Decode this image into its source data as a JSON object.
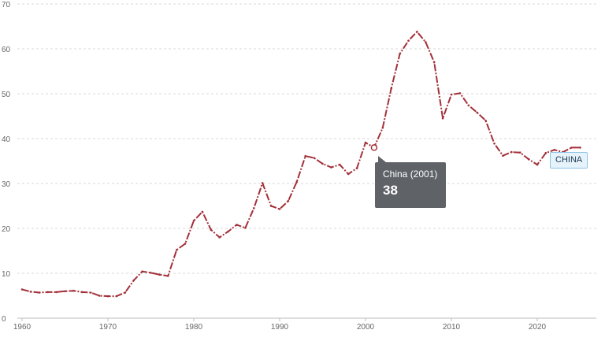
{
  "chart_data": {
    "type": "line",
    "title": "",
    "xlabel": "",
    "ylabel": "",
    "xlim": [
      1960,
      2025
    ],
    "ylim": [
      0,
      70
    ],
    "y_ticks": [
      0,
      10,
      20,
      30,
      40,
      50,
      60,
      70
    ],
    "x_ticks": [
      1960,
      1970,
      1980,
      1990,
      2000,
      2010,
      2020
    ],
    "grid": true,
    "series": [
      {
        "name": "CHINA",
        "color": "#a3303a",
        "x": [
          1960,
          1961,
          1962,
          1963,
          1964,
          1965,
          1966,
          1967,
          1968,
          1969,
          1970,
          1971,
          1972,
          1973,
          1974,
          1975,
          1976,
          1977,
          1978,
          1979,
          1980,
          1981,
          1982,
          1983,
          1984,
          1985,
          1986,
          1987,
          1988,
          1989,
          1990,
          1991,
          1992,
          1993,
          1994,
          1995,
          1996,
          1997,
          1998,
          1999,
          2000,
          2001,
          2002,
          2003,
          2004,
          2005,
          2006,
          2007,
          2008,
          2009,
          2010,
          2011,
          2012,
          2013,
          2014,
          2015,
          2016,
          2017,
          2018,
          2019,
          2020,
          2021,
          2022,
          2023,
          2024,
          2025
        ],
        "values": [
          6.4,
          5.9,
          5.7,
          5.8,
          5.8,
          6.0,
          6.1,
          5.8,
          5.7,
          5.0,
          4.9,
          4.9,
          5.7,
          8.4,
          10.4,
          10.1,
          9.7,
          9.4,
          15.2,
          16.6,
          21.7,
          23.7,
          19.7,
          18.0,
          19.3,
          20.8,
          20.1,
          24.5,
          30.1,
          25.0,
          24.3,
          26.1,
          30.4,
          36.1,
          35.7,
          34.4,
          33.6,
          34.2,
          32.1,
          33.4,
          39.1,
          38.0,
          42.4,
          51.2,
          58.9,
          61.8,
          63.8,
          61.5,
          57.0,
          44.5,
          49.8,
          50.1,
          47.4,
          45.8,
          44.0,
          38.9,
          36.2,
          37.0,
          36.9,
          35.4,
          34.2,
          36.8,
          37.5,
          37.0,
          38.0,
          38.0
        ]
      }
    ],
    "annotations": [
      {
        "label": "China (2001)",
        "value": "38"
      }
    ]
  },
  "tooltip": {
    "title": "China (2001)",
    "value": "38"
  },
  "series_label": "CHINA"
}
